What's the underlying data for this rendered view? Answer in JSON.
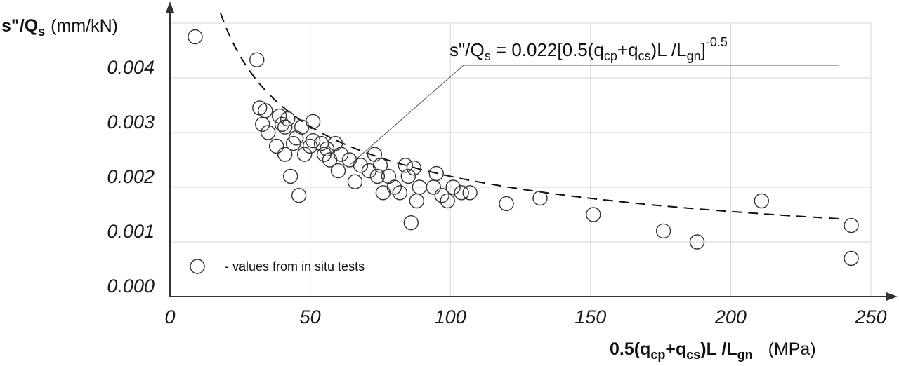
{
  "chart_data": {
    "type": "scatter",
    "title": "",
    "xlabel": {
      "main": "0.5(q",
      "sub1": "cp",
      "plus": "+q",
      "sub2": "cs",
      "mid": ")L /L",
      "sub3": "gn",
      "unit": "(MPa)"
    },
    "ylabel": {
      "main": "s\"/Q",
      "sub": "s",
      "unit": "(mm/kN)"
    },
    "xlim": [
      0,
      250
    ],
    "ylim": [
      0,
      0.005
    ],
    "x_ticks": [
      {
        "value": 0,
        "label": "0"
      },
      {
        "value": 50,
        "label": "50"
      },
      {
        "value": 100,
        "label": "100"
      },
      {
        "value": 150,
        "label": "150"
      },
      {
        "value": 200,
        "label": "200"
      },
      {
        "value": 250,
        "label": "250"
      }
    ],
    "y_ticks": [
      {
        "value": 0,
        "label": "0.000"
      },
      {
        "value": 0.001,
        "label": "0.001"
      },
      {
        "value": 0.002,
        "label": "0.002"
      },
      {
        "value": 0.003,
        "label": "0.003"
      },
      {
        "value": 0.004,
        "label": "0.004"
      }
    ],
    "grid": true,
    "equation": {
      "a": "s\"/Q",
      "a_sub": "s",
      "b": " = 0.022[0.5(q",
      "b_sub": "cp",
      "c": "+q",
      "c_sub": "cs",
      "d": ")L /L",
      "d_sub": "gn",
      "e": "]",
      "sup": "-0.5"
    },
    "legend": {
      "placement": "bottom-left",
      "label": "-  values from in situ tests"
    },
    "fit": {
      "coefficient": 0.022,
      "exponent": -0.5,
      "x_range": [
        18,
        240
      ]
    },
    "series": [
      {
        "name": "values from in situ tests",
        "points": [
          [
            9,
            0.00475
          ],
          [
            31,
            0.00433
          ],
          [
            32,
            0.00345
          ],
          [
            33,
            0.00315
          ],
          [
            34,
            0.0034
          ],
          [
            35,
            0.003
          ],
          [
            38,
            0.00275
          ],
          [
            39,
            0.0033
          ],
          [
            40,
            0.00315
          ],
          [
            41,
            0.0031
          ],
          [
            41,
            0.0026
          ],
          [
            42,
            0.00325
          ],
          [
            43,
            0.0022
          ],
          [
            44,
            0.0028
          ],
          [
            45,
            0.0029
          ],
          [
            46,
            0.00185
          ],
          [
            47,
            0.0031
          ],
          [
            48,
            0.0026
          ],
          [
            50,
            0.00275
          ],
          [
            51,
            0.00285
          ],
          [
            51,
            0.0032
          ],
          [
            54,
            0.0028
          ],
          [
            55,
            0.0026
          ],
          [
            56,
            0.0027
          ],
          [
            57,
            0.0025
          ],
          [
            59,
            0.0028
          ],
          [
            60,
            0.0023
          ],
          [
            61,
            0.0026
          ],
          [
            64,
            0.0025
          ],
          [
            66,
            0.0021
          ],
          [
            68,
            0.0024
          ],
          [
            71,
            0.0023
          ],
          [
            73,
            0.0026
          ],
          [
            74,
            0.0022
          ],
          [
            75,
            0.0024
          ],
          [
            76,
            0.0019
          ],
          [
            78,
            0.0022
          ],
          [
            80,
            0.002
          ],
          [
            82,
            0.0019
          ],
          [
            84,
            0.0024
          ],
          [
            85,
            0.0022
          ],
          [
            86,
            0.00135
          ],
          [
            87,
            0.00235
          ],
          [
            88,
            0.00175
          ],
          [
            89,
            0.002
          ],
          [
            94,
            0.002
          ],
          [
            95,
            0.00225
          ],
          [
            97,
            0.00185
          ],
          [
            99,
            0.00175
          ],
          [
            101,
            0.002
          ],
          [
            104,
            0.0019
          ],
          [
            107,
            0.0019
          ],
          [
            120,
            0.0017
          ],
          [
            132,
            0.0018
          ],
          [
            151,
            0.0015
          ],
          [
            176,
            0.0012
          ],
          [
            188,
            0.001
          ],
          [
            211,
            0.00175
          ],
          [
            243,
            0.0013
          ],
          [
            243,
            0.0007
          ]
        ]
      }
    ],
    "colors": {
      "axis": "#333333",
      "grid": "#d4d4d4",
      "marker": "#333333"
    }
  }
}
